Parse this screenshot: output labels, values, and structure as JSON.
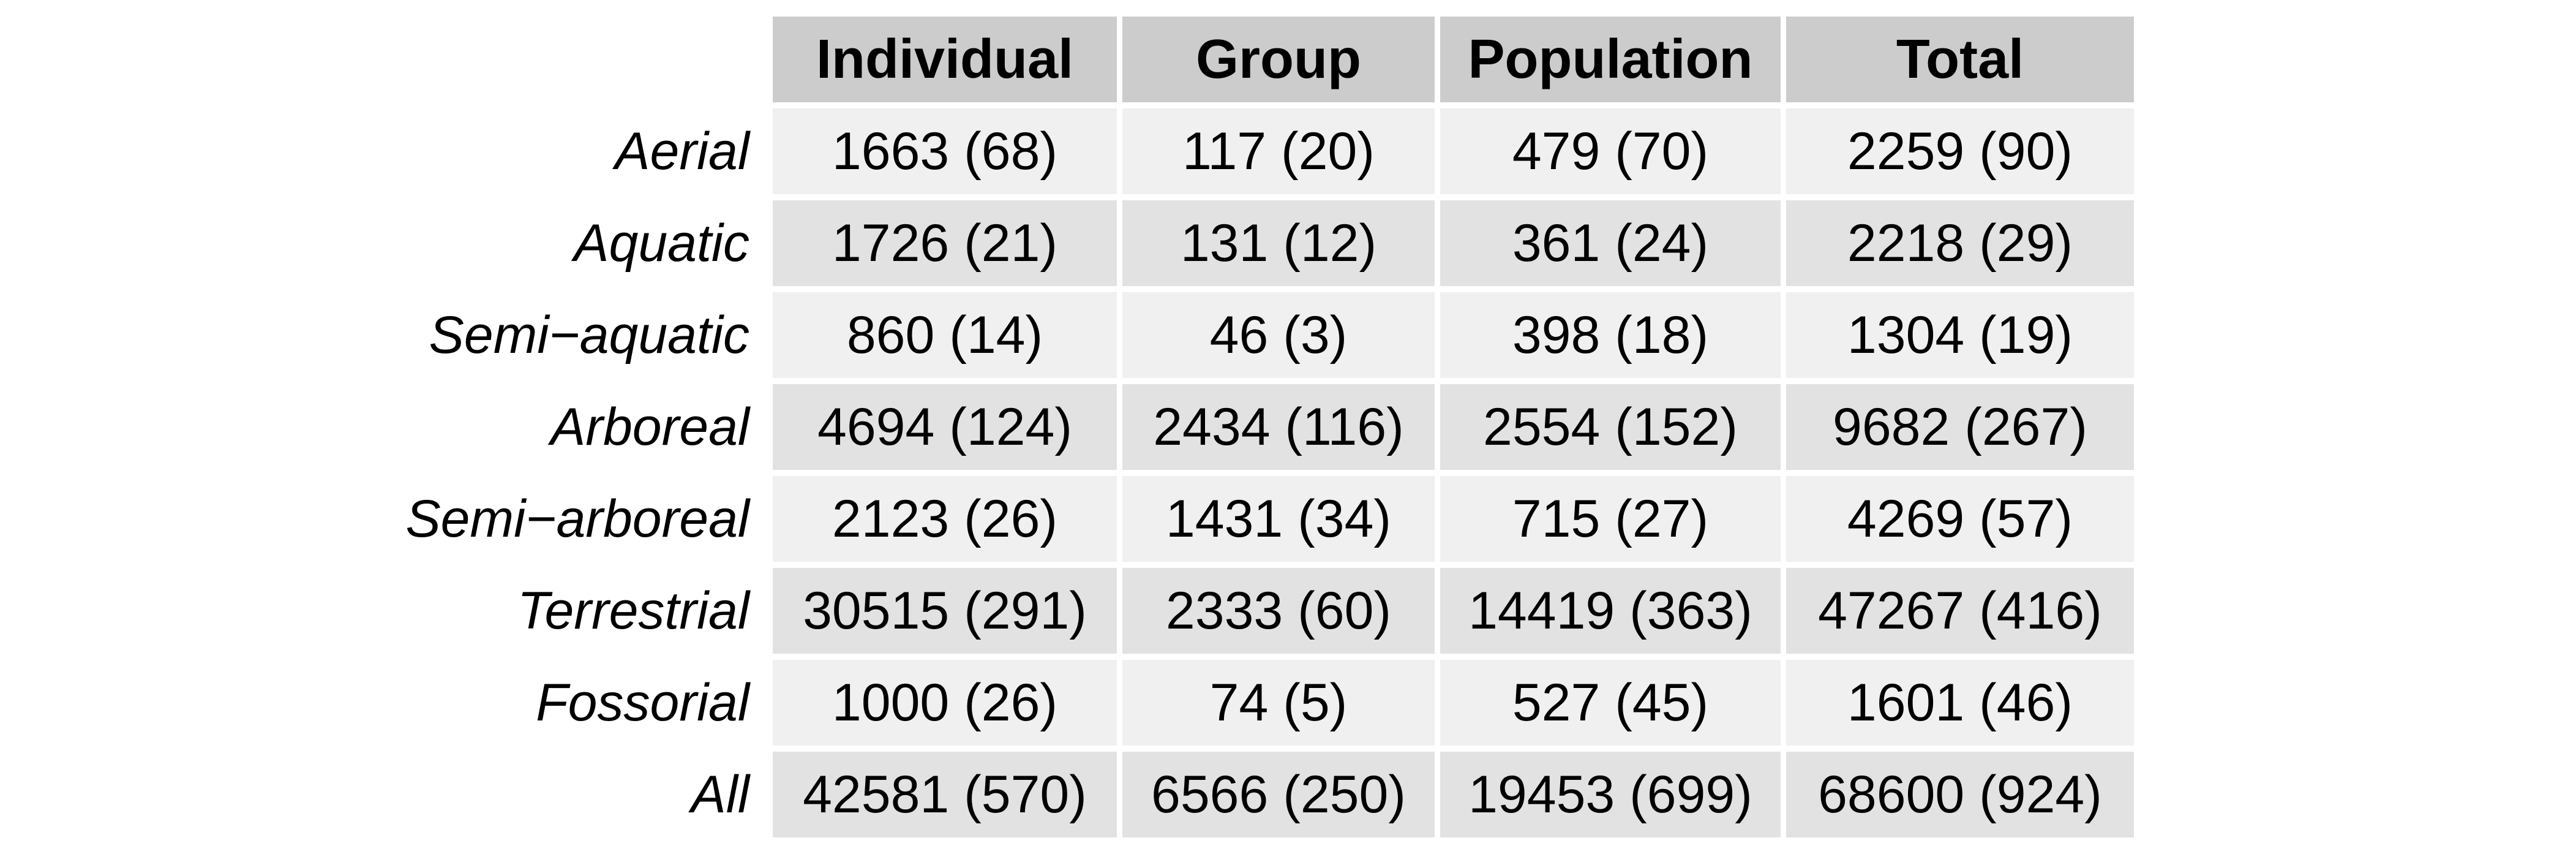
{
  "chart_data": {
    "type": "table",
    "columns": [
      "Individual",
      "Group",
      "Population",
      "Total"
    ],
    "rows": [
      {
        "label": "Aerial",
        "cells": [
          "1663 (68)",
          "117 (20)",
          "479 (70)",
          "2259 (90)"
        ]
      },
      {
        "label": "Aquatic",
        "cells": [
          "1726 (21)",
          "131 (12)",
          "361 (24)",
          "2218 (29)"
        ]
      },
      {
        "label": "Semi−aquatic",
        "cells": [
          "860 (14)",
          "46 (3)",
          "398 (18)",
          "1304 (19)"
        ]
      },
      {
        "label": "Arboreal",
        "cells": [
          "4694 (124)",
          "2434 (116)",
          "2554 (152)",
          "9682 (267)"
        ]
      },
      {
        "label": "Semi−arboreal",
        "cells": [
          "2123 (26)",
          "1431 (34)",
          "715 (27)",
          "4269 (57)"
        ]
      },
      {
        "label": "Terrestrial",
        "cells": [
          "30515 (291)",
          "2333 (60)",
          "14419 (363)",
          "47267 (416)"
        ]
      },
      {
        "label": "Fossorial",
        "cells": [
          "1000 (26)",
          "74 (5)",
          "527 (45)",
          "1601 (46)"
        ]
      },
      {
        "label": "All",
        "cells": [
          "42581 (570)",
          "6566 (250)",
          "19453 (699)",
          "68600 (924)"
        ]
      }
    ],
    "colors": {
      "header_bg": "#cccccc",
      "row_bg_light": "#f0f0f0",
      "row_bg_dark": "#e2e2e2",
      "grid_line": "#ffffff"
    }
  }
}
